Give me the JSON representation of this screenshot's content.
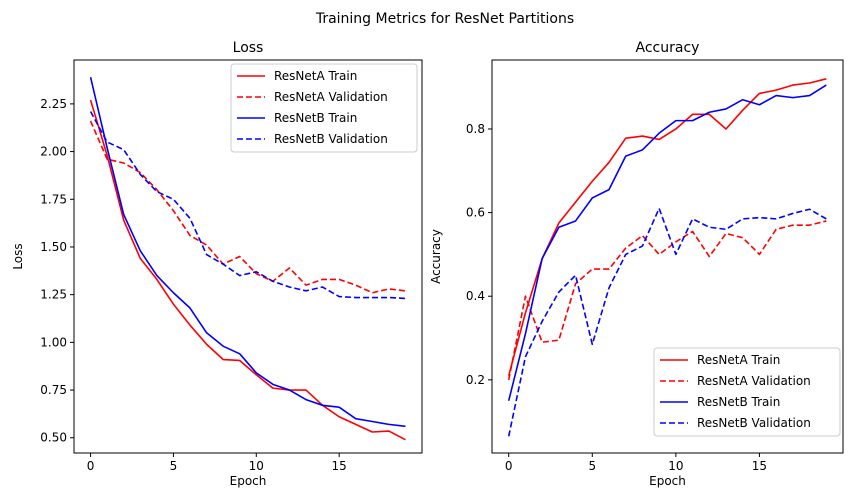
{
  "figure": {
    "suptitle": "Training Metrics for ResNet Partitions"
  },
  "chart_data": [
    {
      "type": "line",
      "title": "Loss",
      "xlabel": "Epoch",
      "ylabel": "Loss",
      "xlim": [
        -1,
        20
      ],
      "ylim": [
        0.42,
        2.48
      ],
      "xticks": [
        0,
        5,
        10,
        15
      ],
      "yticks": [
        0.5,
        0.75,
        1.0,
        1.25,
        1.5,
        1.75,
        2.0,
        2.25
      ],
      "ytick_labels": [
        "0.50",
        "0.75",
        "1.00",
        "1.25",
        "1.50",
        "1.75",
        "2.00",
        "2.25"
      ],
      "grid": false,
      "legend": "upper right",
      "x": [
        0,
        1,
        2,
        3,
        4,
        5,
        6,
        7,
        8,
        9,
        10,
        11,
        12,
        13,
        14,
        15,
        16,
        17,
        18,
        19
      ],
      "series": [
        {
          "name": "ResNetA Train",
          "color": "#ff0000",
          "dash": "solid",
          "values": [
            2.27,
            1.98,
            1.64,
            1.44,
            1.33,
            1.2,
            1.09,
            0.99,
            0.91,
            0.905,
            0.83,
            0.76,
            0.75,
            0.75,
            0.67,
            0.61,
            0.57,
            0.53,
            0.535,
            0.49
          ]
        },
        {
          "name": "ResNetA Validation",
          "color": "#ff0000",
          "dash": "dashed",
          "values": [
            2.16,
            1.96,
            1.94,
            1.89,
            1.8,
            1.69,
            1.56,
            1.51,
            1.41,
            1.45,
            1.36,
            1.32,
            1.39,
            1.3,
            1.33,
            1.33,
            1.3,
            1.26,
            1.28,
            1.27
          ]
        },
        {
          "name": "ResNetB Train",
          "color": "#0000ff",
          "dash": "solid",
          "values": [
            2.39,
            2.02,
            1.67,
            1.48,
            1.35,
            1.26,
            1.18,
            1.05,
            0.98,
            0.94,
            0.84,
            0.78,
            0.75,
            0.7,
            0.67,
            0.66,
            0.6,
            0.585,
            0.57,
            0.56
          ]
        },
        {
          "name": "ResNetB Validation",
          "color": "#0000ff",
          "dash": "dashed",
          "values": [
            2.21,
            2.05,
            2.01,
            1.88,
            1.79,
            1.75,
            1.65,
            1.46,
            1.41,
            1.35,
            1.37,
            1.32,
            1.29,
            1.27,
            1.29,
            1.24,
            1.235,
            1.235,
            1.235,
            1.23
          ]
        }
      ]
    },
    {
      "type": "line",
      "title": "Accuracy",
      "xlabel": "Epoch",
      "ylabel": "Accuracy",
      "xlim": [
        -1,
        20
      ],
      "ylim": [
        0.025,
        0.965
      ],
      "xticks": [
        0,
        5,
        10,
        15
      ],
      "yticks": [
        0.2,
        0.4,
        0.6,
        0.8
      ],
      "ytick_labels": [
        "0.2",
        "0.4",
        "0.6",
        "0.8"
      ],
      "grid": false,
      "legend": "lower right",
      "x": [
        0,
        1,
        2,
        3,
        4,
        5,
        6,
        7,
        8,
        9,
        10,
        11,
        12,
        13,
        14,
        15,
        16,
        17,
        18,
        19
      ],
      "series": [
        {
          "name": "ResNetA Train",
          "color": "#ff0000",
          "dash": "solid",
          "values": [
            0.21,
            0.36,
            0.49,
            0.575,
            0.625,
            0.675,
            0.72,
            0.778,
            0.783,
            0.775,
            0.8,
            0.835,
            0.835,
            0.8,
            0.845,
            0.885,
            0.893,
            0.905,
            0.91,
            0.92
          ]
        },
        {
          "name": "ResNetA Validation",
          "color": "#ff0000",
          "dash": "dashed",
          "values": [
            0.2,
            0.4,
            0.29,
            0.295,
            0.43,
            0.465,
            0.465,
            0.515,
            0.545,
            0.5,
            0.53,
            0.555,
            0.495,
            0.55,
            0.54,
            0.5,
            0.56,
            0.57,
            0.57,
            0.58
          ]
        },
        {
          "name": "ResNetB Train",
          "color": "#0000ff",
          "dash": "solid",
          "values": [
            0.15,
            0.31,
            0.49,
            0.565,
            0.58,
            0.635,
            0.655,
            0.735,
            0.75,
            0.79,
            0.82,
            0.82,
            0.84,
            0.848,
            0.87,
            0.858,
            0.88,
            0.875,
            0.88,
            0.905
          ]
        },
        {
          "name": "ResNetB Validation",
          "color": "#0000ff",
          "dash": "dashed",
          "values": [
            0.065,
            0.255,
            0.34,
            0.41,
            0.45,
            0.285,
            0.42,
            0.5,
            0.52,
            0.61,
            0.5,
            0.585,
            0.565,
            0.56,
            0.585,
            0.588,
            0.585,
            0.598,
            0.608,
            0.585
          ]
        }
      ]
    }
  ]
}
